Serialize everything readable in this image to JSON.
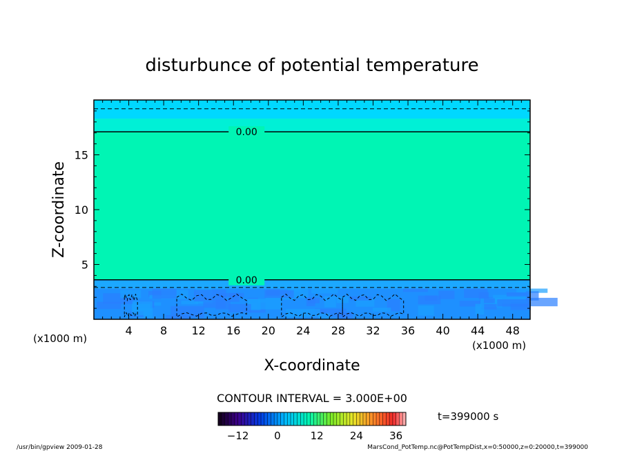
{
  "chart_data": {
    "type": "heatmap",
    "title": "disturbunce of potential temperature",
    "xlabel": "X-coordinate",
    "ylabel": "Z-coordinate",
    "x_unit_left": "(x1000 m)",
    "x_unit_right": "(x1000 m)",
    "xlim": [
      0,
      50
    ],
    "ylim": [
      0,
      20
    ],
    "x_ticks": [
      4,
      8,
      12,
      16,
      20,
      24,
      28,
      32,
      36,
      40,
      44,
      48
    ],
    "y_ticks": [
      5,
      10,
      15
    ],
    "contour_interval_text": "CONTOUR INTERVAL = 3.000E+00",
    "time_text": "t=399000 s",
    "contour_labels": [
      {
        "text": "0.00",
        "x": 17.5,
        "z": 17.1
      },
      {
        "text": "0.00",
        "x": 17.5,
        "z": 3.6
      }
    ],
    "colorbar": {
      "ticks": [
        -12,
        0,
        12,
        24,
        36
      ],
      "range": [
        -18,
        39
      ]
    },
    "bands": [
      {
        "z0": 0.0,
        "z1": 2.8,
        "color": "#1e90ff"
      },
      {
        "z0": 2.8,
        "z1": 3.6,
        "color": "#1ca8ff"
      },
      {
        "z0": 3.6,
        "z1": 17.1,
        "color": "#00f5b4"
      },
      {
        "z0": 17.1,
        "z1": 18.3,
        "color": "#00f0d6"
      },
      {
        "z0": 18.3,
        "z1": 20.0,
        "color": "#00d8ff"
      }
    ]
  },
  "footer": {
    "left": "/usr/bin/gpview   2009-01-28",
    "right": "MarsCond_PotTemp.nc@PotTempDist,x=0:50000,z=0:20000,t=399000"
  }
}
